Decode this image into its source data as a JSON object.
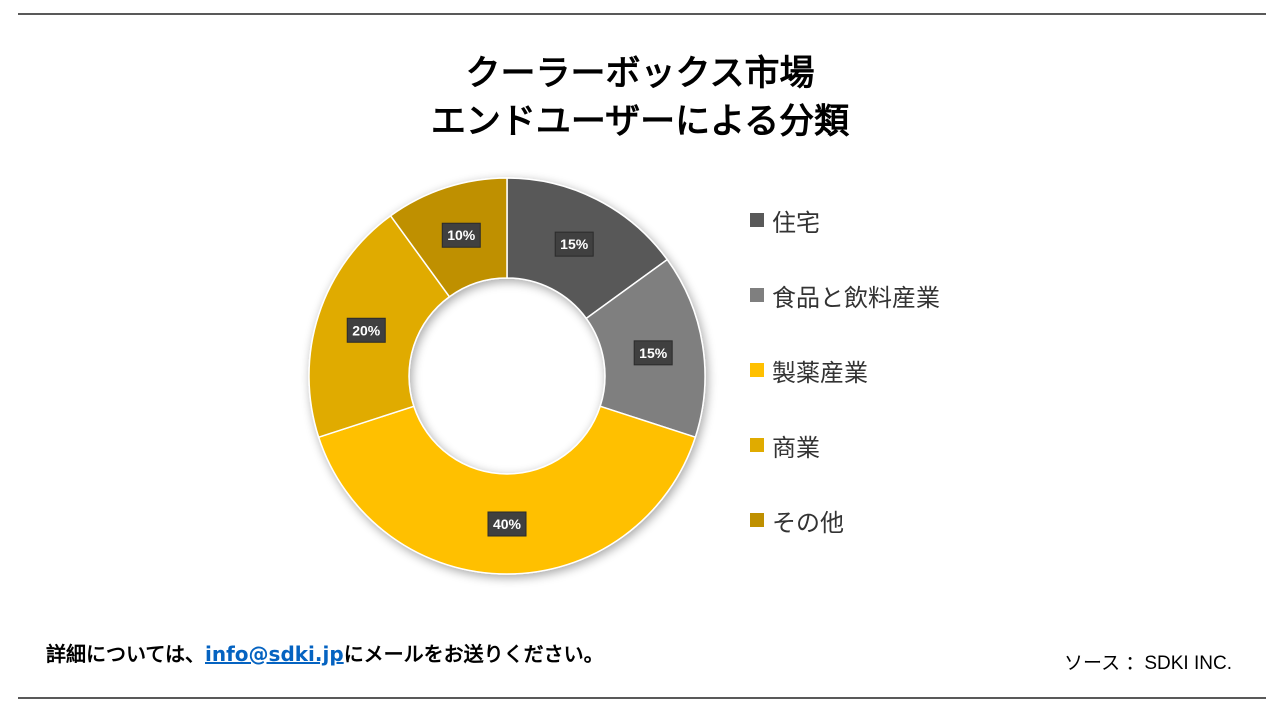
{
  "title": {
    "line1": "クーラーボックス市場",
    "line2": "エンドユーザーによる分類"
  },
  "chart_data": {
    "type": "pie",
    "title": "クーラーボックス市場 エンドユーザーによる分類",
    "donut": true,
    "legend_position": "right",
    "data_labels": [
      "15%",
      "15%",
      "40%",
      "20%",
      "10%"
    ],
    "slices": [
      {
        "label": "住宅",
        "value": 15,
        "color": "#595959"
      },
      {
        "label": "食品と飲料産業",
        "value": 15,
        "color": "#7F7F7F"
      },
      {
        "label": "製薬産業",
        "value": 40,
        "color": "#FFC000"
      },
      {
        "label": "商業",
        "value": 20,
        "color": "#E0AB00"
      },
      {
        "label": "その他",
        "value": 10,
        "color": "#BF9000"
      }
    ]
  },
  "footer": {
    "note_prefix": "詳細については、",
    "email": "info@sdki.jp",
    "note_suffix": "にメールをお送りください。",
    "source": "ソース ：SDKI INC."
  }
}
